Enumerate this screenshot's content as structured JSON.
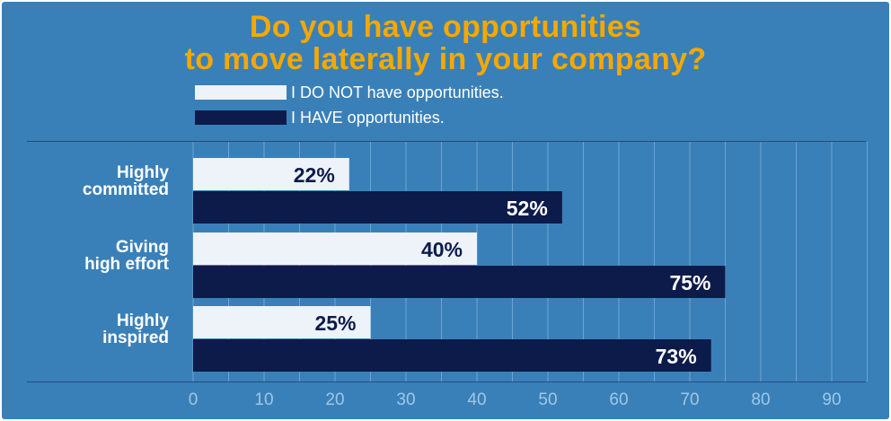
{
  "chart_data": {
    "type": "bar",
    "orientation": "horizontal",
    "title_lines": [
      "Do you have opportunities",
      "to move laterally in your company?"
    ],
    "categories": [
      "Highly\ncommitted",
      "Giving\nhigh effort",
      "Highly\ninspired"
    ],
    "series": [
      {
        "name": "I DO NOT have opportunities.",
        "values": [
          22,
          40,
          25
        ],
        "color": "#eef3f9",
        "label_color": "#0d1b4a"
      },
      {
        "name": "I HAVE opportunities.",
        "values": [
          52,
          75,
          73
        ],
        "color": "#0d1b4a",
        "label_color": "#ffffff"
      }
    ],
    "value_suffix": "%",
    "xlim": [
      0,
      95
    ],
    "xticks": [
      0,
      10,
      20,
      30,
      40,
      50,
      60,
      70,
      80,
      90
    ],
    "grid": true,
    "legend_position": "top",
    "colors": {
      "background": "#3a80b8",
      "title": "#f5a800",
      "tick_label": "#9ec7e6",
      "grid": "#6fa3cf"
    }
  }
}
